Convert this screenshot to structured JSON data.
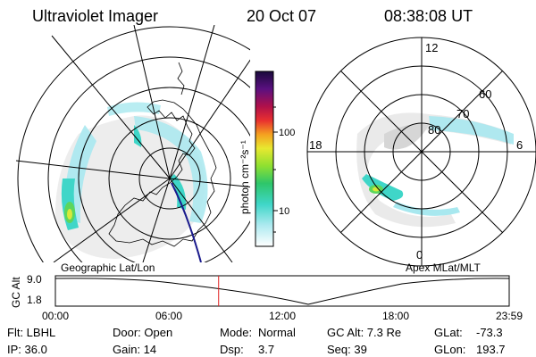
{
  "header": {
    "title": "Ultraviolet Imager",
    "date": "20 Oct 07",
    "time": "08:38:08 UT"
  },
  "left_panel": {
    "label": "Geographic Lat/Lon"
  },
  "right_panel": {
    "label": "Apex MLat/MLT",
    "mlt_labels": [
      "12",
      "18",
      "6",
      "0"
    ],
    "lat_labels": [
      "60",
      "70",
      "80"
    ]
  },
  "colorbar": {
    "unit_label": "photon cm⁻²s⁻¹",
    "tick_labels": [
      "100",
      "10"
    ]
  },
  "altitude_plot": {
    "ylabel": "GC Alt",
    "ytick_labels": [
      "9.0",
      "1.8"
    ],
    "xtick_labels": [
      "00:00",
      "06:00",
      "12:00",
      "18:00",
      "23:59"
    ],
    "current_time_fraction": 0.3597
  },
  "info": {
    "flt": "Flt: LBHL",
    "ip": "IP: 36.0",
    "door": "Door: Open",
    "gain": "Gain: 14",
    "mode_label": "Mode:",
    "mode_value": "Normal",
    "dsp_label": "Dsp:",
    "dsp_value": "3.7",
    "gc_alt": "GC Alt: 7.3 Re",
    "seq": "Seq: 39",
    "glat_label": "GLat:",
    "glat_value": "-73.3",
    "glon_label": "GLon:",
    "glon_value": "193.7"
  },
  "colors": {
    "aurora_low": "#a8e8ef",
    "aurora_mid": "#3fd6c8",
    "aurora_green": "#5cd65c",
    "aurora_yellow": "#d8e83a",
    "track_line": "#1a1a8c",
    "time_marker": "#e02020"
  }
}
